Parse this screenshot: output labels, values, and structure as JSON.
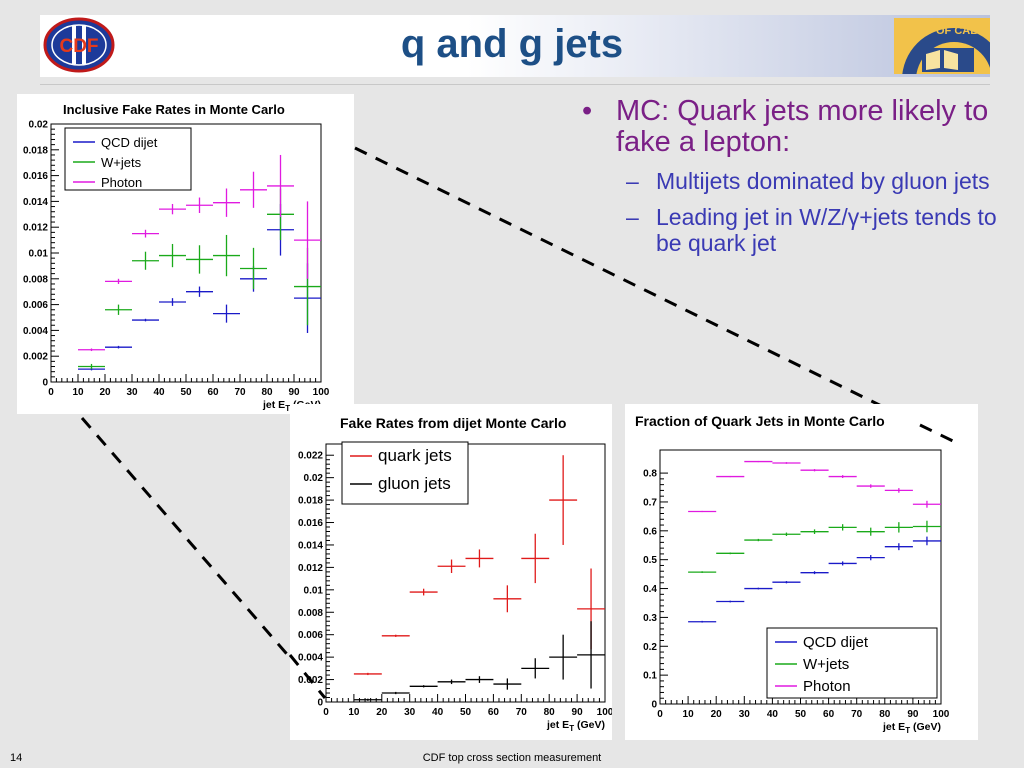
{
  "slide": {
    "title": "q and g jets",
    "page_number": "14",
    "footer": "CDF top cross section measurement",
    "logo_left_text": "CDF",
    "logo_right_text": "RSITY OF CALIFO"
  },
  "bullets": [
    {
      "level": 1,
      "text": "MC: Quark jets more likely to fake a lepton:"
    },
    {
      "level": 2,
      "text": "Multijets dominated by gluon jets"
    },
    {
      "level": 2,
      "text": "Leading jet in W/Z/γ+jets tends to be quark jet"
    }
  ],
  "colors": {
    "blue": "#1a1ac8",
    "green": "#1aaa1a",
    "magenta": "#e01ae0",
    "red": "#e01a1a",
    "black": "#000000"
  },
  "chart_data": [
    {
      "type": "scatter",
      "title": "Inclusive Fake Rates in Monte Carlo",
      "xlabel": "jet E",
      "xlabel_sub": "T",
      "xlabel_unit": " (GeV)",
      "xlim": [
        0,
        100
      ],
      "ylim": [
        0,
        0.02
      ],
      "xticks": [
        "0",
        "10",
        "20",
        "30",
        "40",
        "50",
        "60",
        "70",
        "80",
        "90",
        "100"
      ],
      "yticks": [
        "0",
        "0.002",
        "0.004",
        "0.006",
        "0.008",
        "0.01",
        "0.012",
        "0.014",
        "0.016",
        "0.018",
        "0.02"
      ],
      "legend": "top-left",
      "series": [
        {
          "name": "QCD dijet",
          "color": "#1a1ac8",
          "x": [
            15,
            25,
            35,
            45,
            55,
            65,
            75,
            85,
            95
          ],
          "y": [
            0.001,
            0.0027,
            0.0048,
            0.0062,
            0.007,
            0.0053,
            0.008,
            0.0118,
            0.0065
          ],
          "yerr": [
            0.0001,
            0.0001,
            0.0001,
            0.0003,
            0.0004,
            0.0007,
            0.001,
            0.002,
            0.0027
          ]
        },
        {
          "name": "W+jets",
          "color": "#1aaa1a",
          "x": [
            15,
            25,
            35,
            45,
            55,
            65,
            75,
            85,
            95
          ],
          "y": [
            0.0012,
            0.0056,
            0.0094,
            0.0098,
            0.0095,
            0.0098,
            0.0088,
            0.013,
            0.0074
          ],
          "yerr": [
            0.0002,
            0.0004,
            0.0007,
            0.0009,
            0.0011,
            0.0016,
            0.0016,
            0.002,
            0.003
          ]
        },
        {
          "name": "Photon",
          "color": "#e01ae0",
          "x": [
            15,
            25,
            35,
            45,
            55,
            65,
            75,
            85,
            95
          ],
          "y": [
            0.0025,
            0.0078,
            0.0115,
            0.0134,
            0.0137,
            0.0139,
            0.0149,
            0.0152,
            0.011
          ],
          "yerr": [
            0.0001,
            0.0002,
            0.0003,
            0.0004,
            0.0006,
            0.0011,
            0.0014,
            0.0024,
            0.003
          ]
        }
      ]
    },
    {
      "type": "scatter",
      "title": "Fake Rates from dijet Monte Carlo",
      "xlabel": "jet E",
      "xlabel_sub": "T",
      "xlabel_unit": " (GeV)",
      "xlim": [
        0,
        100
      ],
      "ylim": [
        0,
        0.023
      ],
      "xticks": [
        "0",
        "10",
        "20",
        "30",
        "40",
        "50",
        "60",
        "70",
        "80",
        "90",
        "100"
      ],
      "yticks": [
        "0",
        "0.002",
        "0.004",
        "0.006",
        "0.008",
        "0.01",
        "0.012",
        "0.014",
        "0.016",
        "0.018",
        "0.02",
        "0.022"
      ],
      "legend": "top-left",
      "series": [
        {
          "name": "quark jets",
          "color": "#e01a1a",
          "x": [
            15,
            25,
            35,
            45,
            55,
            65,
            75,
            85,
            95
          ],
          "y": [
            0.0025,
            0.0059,
            0.0098,
            0.0121,
            0.0128,
            0.0092,
            0.0128,
            0.018,
            0.0083
          ],
          "yerr": [
            0.0001,
            0.0001,
            0.0003,
            0.0006,
            0.0008,
            0.0012,
            0.0022,
            0.004,
            0.0036
          ]
        },
        {
          "name": "gluon jets",
          "color": "#000000",
          "x": [
            15,
            25,
            35,
            45,
            55,
            65,
            75,
            85,
            95
          ],
          "y": [
            0.0002,
            0.0008,
            0.0014,
            0.0018,
            0.002,
            0.0016,
            0.003,
            0.004,
            0.0042
          ],
          "yerr": [
            0.0001,
            0.0001,
            0.0001,
            0.0002,
            0.0003,
            0.0005,
            0.0009,
            0.002,
            0.003
          ]
        }
      ]
    },
    {
      "type": "scatter",
      "title": "Fraction of Quark Jets in Monte Carlo",
      "xlabel": "jet E",
      "xlabel_sub": "T",
      "xlabel_unit": " (GeV)",
      "xlim": [
        0,
        100
      ],
      "ylim": [
        0,
        0.88
      ],
      "xticks": [
        "0",
        "10",
        "20",
        "30",
        "40",
        "50",
        "60",
        "70",
        "80",
        "90",
        "100"
      ],
      "yticks": [
        "0",
        "0.1",
        "0.2",
        "0.3",
        "0.4",
        "0.5",
        "0.6",
        "0.7",
        "0.8"
      ],
      "legend": "bottom-right",
      "series": [
        {
          "name": "QCD dijet",
          "color": "#1a1ac8",
          "x": [
            15,
            25,
            35,
            45,
            55,
            65,
            75,
            85,
            95
          ],
          "y": [
            0.285,
            0.355,
            0.4,
            0.422,
            0.455,
            0.487,
            0.507,
            0.545,
            0.565
          ],
          "yerr": [
            0.003,
            0.003,
            0.003,
            0.004,
            0.005,
            0.007,
            0.009,
            0.012,
            0.015
          ]
        },
        {
          "name": "W+jets",
          "color": "#1aaa1a",
          "x": [
            15,
            25,
            35,
            45,
            55,
            65,
            75,
            85,
            95
          ],
          "y": [
            0.457,
            0.522,
            0.568,
            0.588,
            0.597,
            0.612,
            0.597,
            0.612,
            0.615
          ],
          "yerr": [
            0.003,
            0.003,
            0.004,
            0.006,
            0.008,
            0.011,
            0.014,
            0.018,
            0.02
          ]
        },
        {
          "name": "Photon",
          "color": "#e01ae0",
          "x": [
            15,
            25,
            35,
            45,
            55,
            65,
            75,
            85,
            95
          ],
          "y": [
            0.667,
            0.788,
            0.84,
            0.835,
            0.81,
            0.788,
            0.755,
            0.74,
            0.692
          ],
          "yerr": [
            0.002,
            0.002,
            0.002,
            0.003,
            0.004,
            0.005,
            0.006,
            0.008,
            0.012
          ]
        }
      ]
    }
  ]
}
